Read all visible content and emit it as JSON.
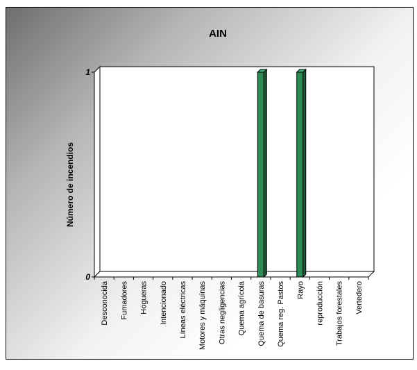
{
  "chart_data": {
    "type": "bar",
    "title": "AIN",
    "xlabel": "",
    "ylabel": "Número de incendios",
    "ylim": [
      0,
      1
    ],
    "yticks": [
      0,
      1
    ],
    "categories": [
      "Desconocida",
      "Fumadores",
      "Hogueras",
      "Intencionado",
      "Líneas eléctricas",
      "Motores y máquinas",
      "Otras negligencias",
      "Quema agrícola",
      "Quema de basuras",
      "Quema reg. Pastos",
      "Rayo",
      "reproducción",
      "Trabajos forestales",
      "Vertedero"
    ],
    "values": [
      0,
      0,
      0,
      0,
      0,
      0,
      0,
      0,
      1,
      0,
      1,
      0,
      0,
      0
    ],
    "style": "3d",
    "bar_color": "#2e8b57",
    "grid": false,
    "legend": "none"
  }
}
